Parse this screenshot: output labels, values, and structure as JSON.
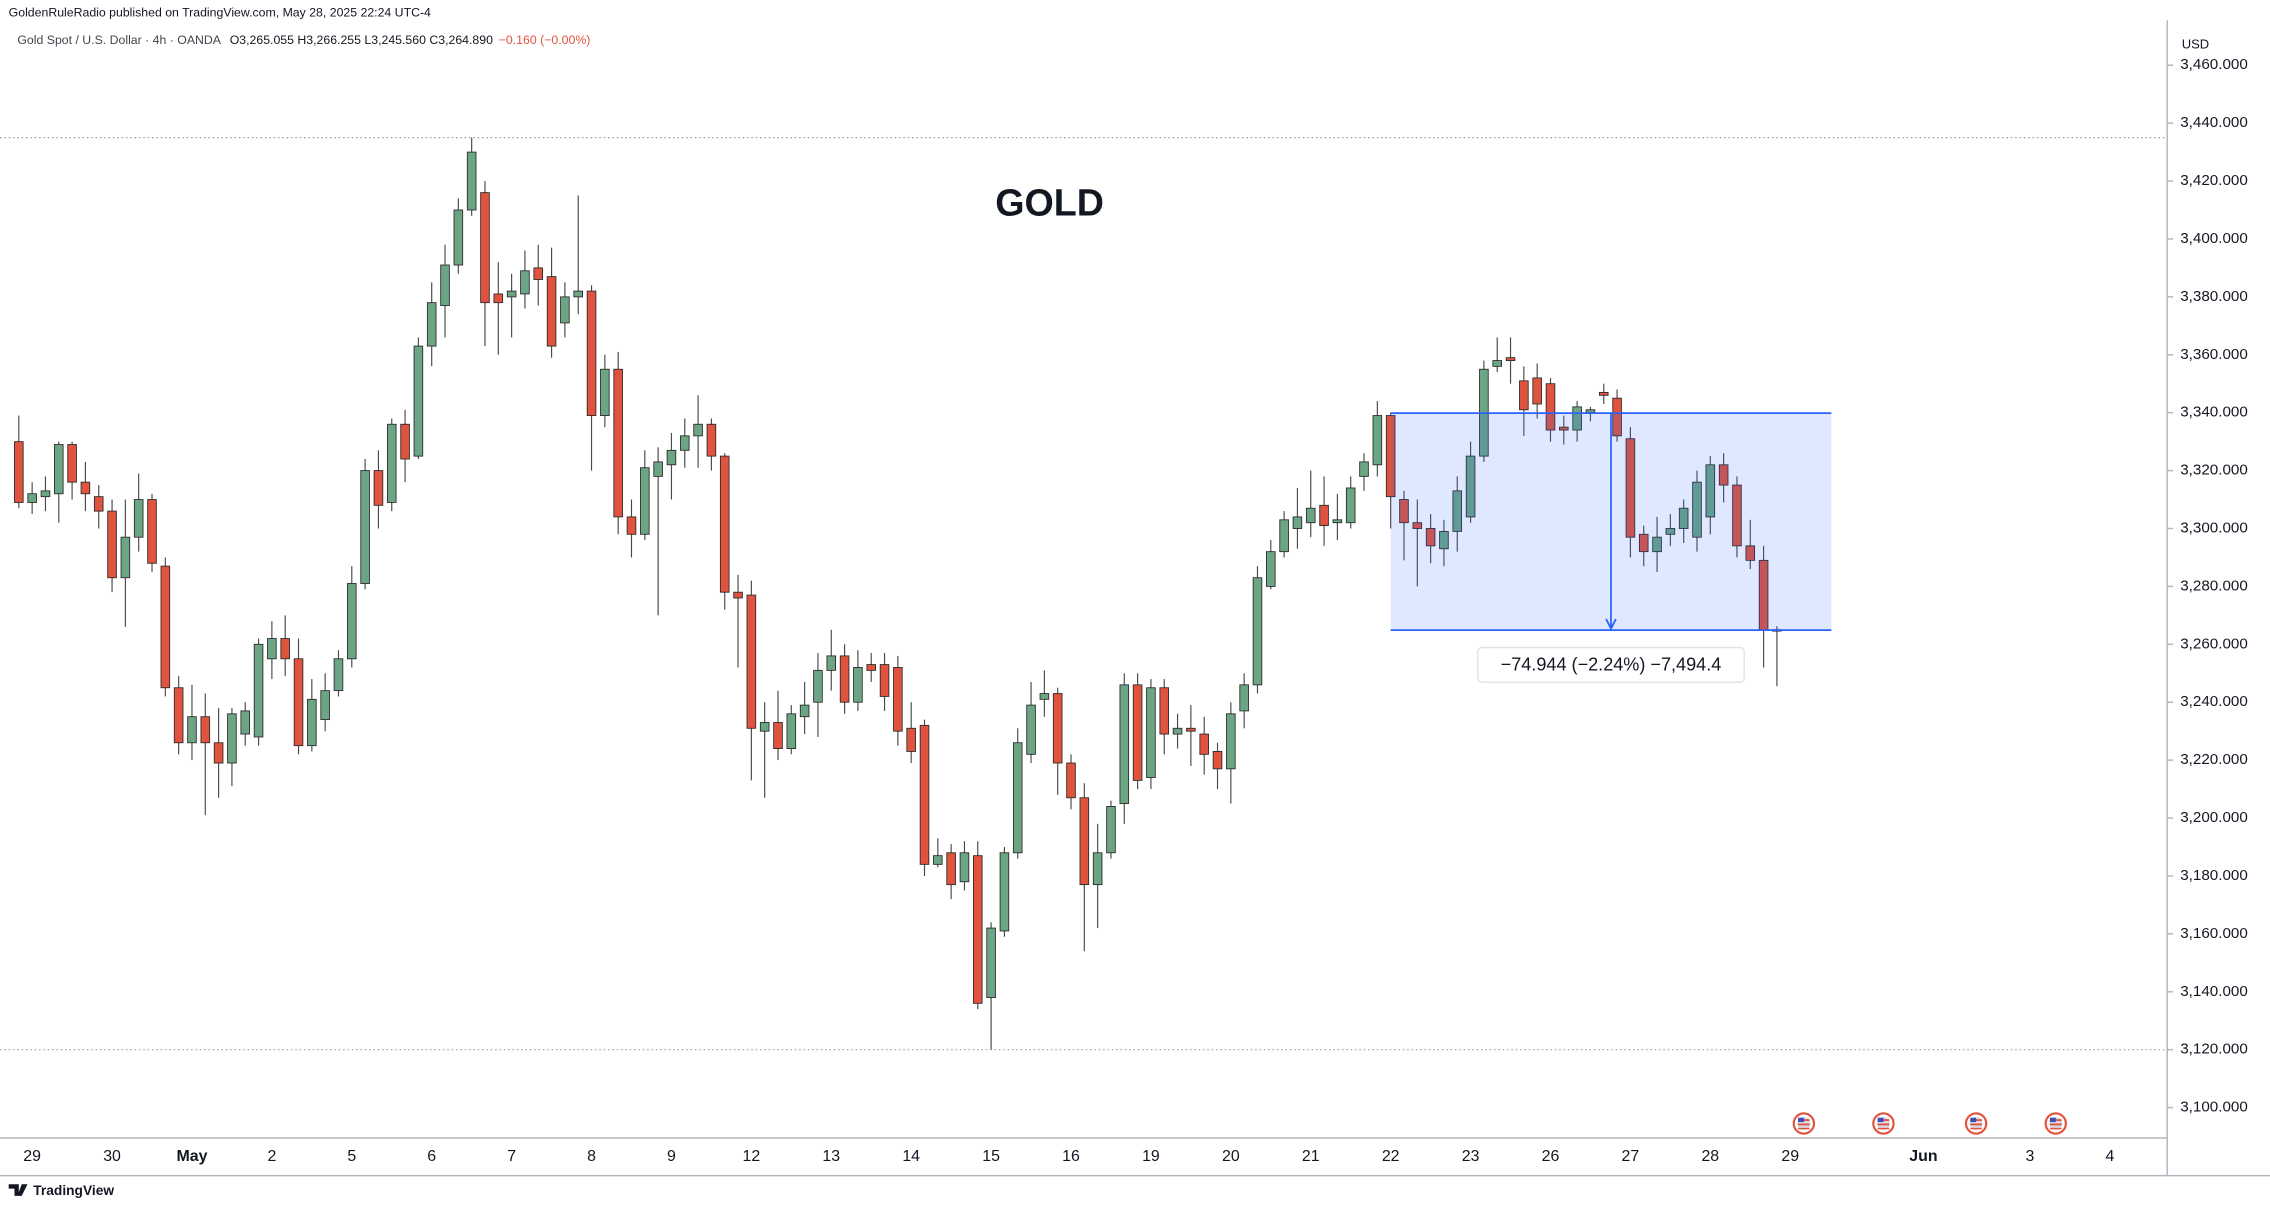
{
  "chart_data": {
    "type": "candlestick",
    "title": "GOLD",
    "header": "GoldenRuleRadio published on TradingView.com, May 28, 2025 22:24 UTC-4",
    "symbol": "Gold Spot / U.S. Dollar · 4h · OANDA",
    "ohlc_text": "O3,265.055 H3,266.255 L3,245.560 C3,264.890",
    "change": "−0.160 (−0.00%)",
    "currency": "USD",
    "brand": "TradingView",
    "up_color": "#6ca583",
    "down_color": "#e0533f",
    "categories": [
      null,
      "29",
      null,
      null,
      null,
      null,
      null,
      "30",
      null,
      null,
      null,
      null,
      null,
      "May",
      null,
      null,
      null,
      null,
      null,
      "2",
      null,
      null,
      null,
      null,
      null,
      "5",
      null,
      null,
      null,
      null,
      null,
      "6",
      null,
      null,
      null,
      null,
      null,
      "7",
      null,
      null,
      null,
      null,
      null,
      "8",
      null,
      null,
      null,
      null,
      null,
      "9",
      null,
      null,
      null,
      null,
      null,
      "12",
      null,
      null,
      null,
      null,
      null,
      "13",
      null,
      null,
      null,
      null,
      null,
      "14",
      null,
      null,
      null,
      null,
      null,
      "15",
      null,
      null,
      null,
      null,
      null,
      "16",
      null,
      null,
      null,
      null,
      null,
      "19",
      null,
      null,
      null,
      null,
      null,
      "20",
      null,
      null,
      null,
      null,
      null,
      "21",
      null,
      null,
      null,
      null,
      null,
      "22",
      null,
      null,
      null,
      null,
      null,
      "23",
      null,
      null,
      null,
      null,
      null,
      "26",
      null,
      null,
      null,
      null,
      null,
      "27",
      null,
      null,
      null,
      null,
      null,
      "28",
      null,
      null,
      null,
      null,
      null,
      "29",
      null,
      null,
      null,
      null,
      null,
      null,
      null,
      null,
      null,
      "Jun",
      null,
      null,
      null,
      null,
      null,
      null,
      null,
      "3",
      null,
      null,
      null,
      null,
      null,
      "4",
      null,
      null,
      null
    ],
    "open": [
      3330,
      3309,
      3311,
      3312,
      3329,
      3316,
      3311,
      3306,
      3283,
      3297,
      3310,
      3287,
      3245,
      3226,
      3235,
      3226,
      3219,
      3229,
      3228,
      3255,
      3262,
      3255,
      3225,
      3234,
      3244,
      3255,
      3281,
      3320,
      3309,
      3336,
      3325,
      3363,
      3377,
      3391,
      3410,
      3416,
      3381,
      3380,
      3381,
      3390,
      3387,
      3371,
      3380,
      3382,
      3339,
      3355,
      3304,
      3298,
      3318,
      3322,
      3327,
      3332,
      3336,
      3325,
      3278,
      3277,
      3230,
      3233,
      3224,
      3235,
      3240,
      3251,
      3256,
      3240,
      3253,
      3253,
      3252,
      3231,
      3232,
      3184,
      3188,
      3178,
      3187,
      3138,
      3161,
      3188,
      3222,
      3241,
      3243,
      3219,
      3207,
      3177,
      3188,
      3205,
      3246,
      3214,
      3245,
      3229,
      3231,
      3229,
      3223,
      3217,
      3237,
      3246,
      3280,
      3292,
      3300,
      3302,
      3308,
      3302,
      3302,
      3318,
      3322,
      3339,
      3310,
      3302,
      3300,
      3293,
      3299,
      3304,
      3325,
      3356,
      3359,
      3351,
      3352,
      3350,
      3335,
      3334,
      3340,
      3347,
      3345,
      3331,
      3298,
      3292,
      3298,
      3300,
      3297,
      3304,
      3322,
      3315,
      3294,
      3289,
      3265.055,
      null,
      null,
      null,
      null,
      null,
      null,
      null,
      null,
      null,
      null,
      null,
      null,
      null,
      null,
      null,
      null,
      null,
      null,
      null,
      null,
      null,
      null,
      null,
      null,
      null,
      null,
      null,
      null
    ],
    "high": [
      3339,
      3316,
      3318,
      3330,
      3330,
      3323,
      3315,
      3310,
      3310,
      3319,
      3312,
      3290,
      3249,
      3246,
      3243,
      3238,
      3238,
      3240,
      3262,
      3268,
      3270,
      3262,
      3248,
      3250,
      3258,
      3287,
      3324,
      3327,
      3338,
      3341,
      3366,
      3385,
      3398,
      3414,
      3435,
      3420,
      3392,
      3388,
      3396,
      3398,
      3397,
      3385,
      3415,
      3384,
      3360,
      3361,
      3310,
      3327,
      3328,
      3333,
      3338,
      3346,
      3338,
      3326,
      3284,
      3282,
      3240,
      3244,
      3239,
      3247,
      3257,
      3265,
      3260,
      3258,
      3257,
      3257,
      3256,
      3240,
      3234,
      3193,
      3191,
      3192,
      3192,
      3164,
      3190,
      3231,
      3247,
      3251,
      3245,
      3222,
      3212,
      3198,
      3206,
      3250,
      3250,
      3248,
      3248,
      3236,
      3239,
      3235,
      3226,
      3240,
      3250,
      3287,
      3296,
      3306,
      3314,
      3320,
      3318,
      3312,
      3318,
      3326,
      3344,
      3340,
      3313,
      3310,
      3305,
      3303,
      3318,
      3330,
      3358,
      3366,
      3366,
      3356,
      3357,
      3352,
      3339,
      3344,
      3342,
      3350,
      3348,
      3335,
      3301,
      3304,
      3305,
      3310,
      3320,
      3325,
      3326,
      3318,
      3303,
      3294,
      3266.255,
      null,
      null,
      null,
      null,
      null,
      null,
      null,
      null,
      null,
      null,
      null,
      null,
      null,
      null,
      null,
      null,
      null,
      null,
      null,
      null,
      null,
      null,
      null,
      null,
      null,
      null,
      null,
      null
    ],
    "low": [
      3307,
      3305,
      3306,
      3302,
      3310,
      3306,
      3300,
      3278,
      3266,
      3292,
      3285,
      3242,
      3222,
      3220,
      3201,
      3207,
      3211,
      3225,
      3225,
      3248,
      3249,
      3222,
      3223,
      3230,
      3242,
      3252,
      3279,
      3300,
      3306,
      3316,
      3324,
      3356,
      3366,
      3388,
      3408,
      3363,
      3360,
      3366,
      3376,
      3377,
      3359,
      3366,
      3374,
      3320,
      3335,
      3298,
      3290,
      3296,
      3270,
      3310,
      3321,
      3321,
      3320,
      3272,
      3252,
      3213,
      3207,
      3220,
      3222,
      3229,
      3228,
      3244,
      3236,
      3237,
      3247,
      3237,
      3225,
      3219,
      3180,
      3183,
      3172,
      3175,
      3134,
      3120,
      3159,
      3186,
      3219,
      3235,
      3208,
      3203,
      3154,
      3162,
      3186,
      3198,
      3210,
      3210,
      3222,
      3224,
      3218,
      3215,
      3210,
      3205,
      3231,
      3243,
      3279,
      3290,
      3293,
      3297,
      3294,
      3296,
      3300,
      3313,
      3318,
      3300,
      3289,
      3280,
      3288,
      3287,
      3292,
      3302,
      3323,
      3354,
      3350,
      3332,
      3338,
      3330,
      3329,
      3330,
      3337,
      3343,
      3330,
      3290,
      3287,
      3285,
      3294,
      3295,
      3292,
      3298,
      3309,
      3290,
      3286,
      3252,
      3245.56,
      null,
      null,
      null,
      null,
      null,
      null,
      null,
      null,
      null,
      null,
      null,
      null,
      null,
      null,
      null,
      null,
      null,
      null,
      null,
      null,
      null,
      null,
      null,
      null,
      null,
      null,
      null,
      null
    ],
    "close": [
      3309,
      3312,
      3313,
      3329,
      3316,
      3312,
      3306,
      3283,
      3297,
      3310,
      3288,
      3245,
      3226,
      3235,
      3226,
      3219,
      3236,
      3237,
      3260,
      3262,
      3255,
      3225,
      3241,
      3244,
      3255,
      3281,
      3320,
      3308,
      3336,
      3324,
      3363,
      3378,
      3391,
      3410,
      3430,
      3378,
      3378,
      3382,
      3389,
      3386,
      3363,
      3380,
      3382,
      3339,
      3355,
      3304,
      3298,
      3321,
      3323,
      3327,
      3332,
      3336,
      3325,
      3278,
      3276,
      3231,
      3233,
      3224,
      3236,
      3239,
      3251,
      3256,
      3240,
      3252,
      3251,
      3242,
      3230,
      3223,
      3184,
      3187,
      3177,
      3188,
      3136,
      3162,
      3188,
      3226,
      3239,
      3243,
      3219,
      3207,
      3177,
      3188,
      3204,
      3246,
      3213,
      3245,
      3229,
      3231,
      3230,
      3222,
      3217,
      3236,
      3246,
      3283,
      3292,
      3303,
      3304,
      3307,
      3301,
      3303,
      3314,
      3323,
      3339,
      3311,
      3302,
      3300,
      3294,
      3299,
      3313,
      3325,
      3355,
      3358,
      3358,
      3341,
      3343,
      3334,
      3334,
      3342,
      3341,
      3346,
      3332,
      3297,
      3292,
      3297,
      3300,
      3307,
      3316,
      3322,
      3315,
      3294,
      3289,
      3265,
      3264.89,
      null,
      null,
      null,
      null,
      null,
      null,
      null,
      null,
      null,
      null,
      null,
      null,
      null,
      null,
      null,
      null,
      null,
      null,
      null,
      null,
      null,
      null,
      null,
      null,
      null,
      null,
      null,
      null
    ],
    "ylim": [
      3089.5,
      3475.5
    ],
    "yticks": [
      {
        "value": 3100,
        "label": "3,100.000"
      },
      {
        "value": 3120,
        "label": "3,120.000"
      },
      {
        "value": 3140,
        "label": "3,140.000"
      },
      {
        "value": 3160,
        "label": "3,160.000"
      },
      {
        "value": 3180,
        "label": "3,180.000"
      },
      {
        "value": 3200,
        "label": "3,200.000"
      },
      {
        "value": 3220,
        "label": "3,220.000"
      },
      {
        "value": 3240,
        "label": "3,240.000"
      },
      {
        "value": 3260,
        "label": "3,260.000"
      },
      {
        "value": 3280,
        "label": "3,280.000"
      },
      {
        "value": 3300,
        "label": "3,300.000"
      },
      {
        "value": 3320,
        "label": "3,320.000"
      },
      {
        "value": 3340,
        "label": "3,340.000"
      },
      {
        "value": 3360,
        "label": "3,360.000"
      },
      {
        "value": 3380,
        "label": "3,380.000"
      },
      {
        "value": 3400,
        "label": "3,400.000"
      },
      {
        "value": 3420,
        "label": "3,420.000"
      },
      {
        "value": 3440,
        "label": "3,440.000"
      },
      {
        "value": 3460,
        "label": "3,460.000"
      }
    ],
    "measure": {
      "start": 3339.834,
      "end": 3264.89,
      "label": "−74.944 (−2.24%) −7,494.4"
    }
  }
}
